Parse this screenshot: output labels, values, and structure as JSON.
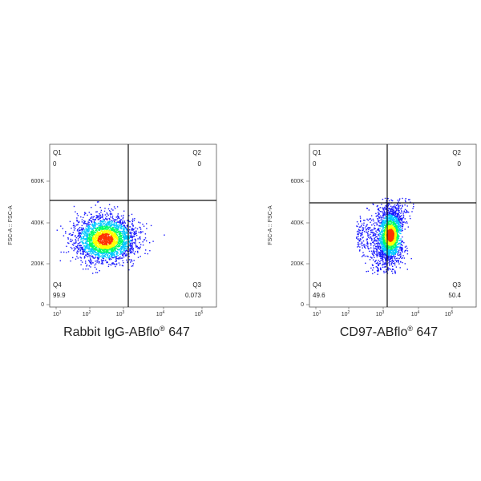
{
  "chart_data": [
    {
      "type": "scatter",
      "title": "",
      "xlabel": "Rabbit IgG-ABflo",
      "xlabel_sup": "®",
      "xlabel_tail": " 647",
      "ylabel": "FSC-A :: FSC-A",
      "xscale": "log",
      "x_tick_labels": [
        "10",
        "10",
        "10",
        "10",
        "10"
      ],
      "x_tick_exponents": [
        "1",
        "2",
        "3",
        "4",
        "5"
      ],
      "y_tick_labels": [
        "0",
        "200K",
        "400K",
        "600K"
      ],
      "y_ticks": [
        0,
        200000,
        400000,
        600000
      ],
      "ylim": [
        0,
        780000
      ],
      "quadrants": [
        {
          "name": "Q1",
          "value": "0",
          "position": "top-left"
        },
        {
          "name": "Q2",
          "value": "0",
          "position": "top-right"
        },
        {
          "name": "Q3",
          "value": "0.073",
          "position": "bottom-right"
        },
        {
          "name": "Q4",
          "value": "99.9",
          "position": "bottom-left"
        }
      ],
      "gate_x": 1500,
      "gate_y": 500000,
      "population": {
        "x_center": 280,
        "x_spread_decades": 0.45,
        "y_center": 320000,
        "y_spread": 55000
      },
      "colors": [
        "#1a1aff",
        "#00c8ff",
        "#00ff66",
        "#ffff00",
        "#ff3300"
      ]
    },
    {
      "type": "scatter",
      "title": "",
      "xlabel": "CD97-ABflo",
      "xlabel_sup": "®",
      "xlabel_tail": " 647",
      "ylabel": "FSC-A :: FSC-A",
      "xscale": "log",
      "x_tick_labels": [
        "10",
        "10",
        "10",
        "10",
        "10"
      ],
      "x_tick_exponents": [
        "1",
        "2",
        "3",
        "4",
        "5"
      ],
      "y_tick_labels": [
        "0",
        "200K",
        "400K",
        "600K"
      ],
      "y_ticks": [
        0,
        200000,
        400000,
        600000
      ],
      "ylim": [
        0,
        780000
      ],
      "quadrants": [
        {
          "name": "Q1",
          "value": "0",
          "position": "top-left"
        },
        {
          "name": "Q2",
          "value": "0",
          "position": "top-right"
        },
        {
          "name": "Q3",
          "value": "50.4",
          "position": "bottom-right"
        },
        {
          "name": "Q4",
          "value": "49.6",
          "position": "bottom-left"
        }
      ],
      "gate_x": 1500,
      "gate_y": 500000,
      "population": {
        "x_center": 1500,
        "x_spread_decades": 0.2,
        "y_center": 340000,
        "y_spread": 60000
      },
      "colors": [
        "#1a1aff",
        "#00c8ff",
        "#00ff66",
        "#ffff00",
        "#ff3300"
      ]
    }
  ]
}
